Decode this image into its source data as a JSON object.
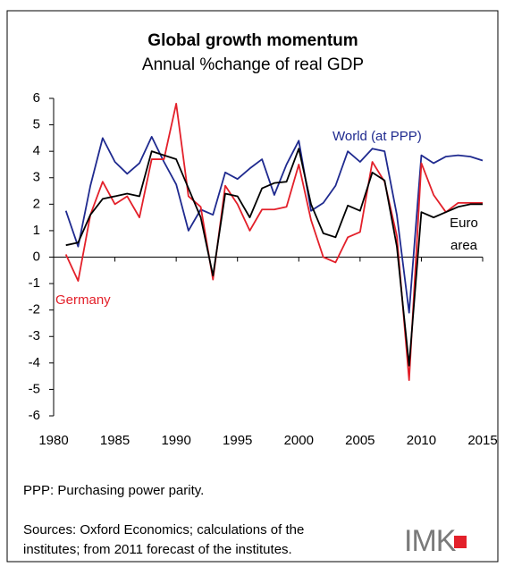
{
  "chart_data": {
    "type": "line",
    "title": "Global growth momentum",
    "subtitle": "Annual %change of real GDP",
    "x": [
      1981,
      1982,
      1983,
      1984,
      1985,
      1986,
      1987,
      1988,
      1989,
      1990,
      1991,
      1992,
      1993,
      1994,
      1995,
      1996,
      1997,
      1998,
      1999,
      2000,
      2001,
      2002,
      2003,
      2004,
      2005,
      2006,
      2007,
      2008,
      2009,
      2010,
      2011,
      2012,
      2013,
      2014,
      2015
    ],
    "series": [
      {
        "name": "World (at PPP)",
        "color": "#1f2a8f",
        "values": [
          1.75,
          0.4,
          2.7,
          4.5,
          3.6,
          3.15,
          3.55,
          4.55,
          3.6,
          2.75,
          1.0,
          1.8,
          1.6,
          3.2,
          2.95,
          3.35,
          3.7,
          2.35,
          3.5,
          4.4,
          1.75,
          2.05,
          2.7,
          4.0,
          3.6,
          4.1,
          4.0,
          1.6,
          -2.1,
          3.85,
          3.55,
          3.8,
          3.85,
          3.8,
          3.65
        ]
      },
      {
        "name": "Germany",
        "color": "#e3202a",
        "values": [
          0.1,
          -0.9,
          1.6,
          2.85,
          2.0,
          2.3,
          1.5,
          3.7,
          3.7,
          5.8,
          2.3,
          1.9,
          -0.85,
          2.7,
          2.0,
          1.0,
          1.8,
          1.8,
          1.9,
          3.5,
          1.4,
          0.0,
          -0.2,
          0.75,
          0.95,
          3.6,
          2.85,
          0.8,
          -4.65,
          3.55,
          2.35,
          1.7,
          2.05,
          2.05,
          2.05
        ]
      },
      {
        "name": "Euro area",
        "color": "#000000",
        "values": [
          0.45,
          0.55,
          1.6,
          2.2,
          2.3,
          2.4,
          2.3,
          4.0,
          3.85,
          3.7,
          2.6,
          1.5,
          -0.7,
          2.4,
          2.3,
          1.5,
          2.6,
          2.8,
          2.85,
          4.1,
          2.0,
          0.9,
          0.75,
          1.95,
          1.75,
          3.2,
          2.9,
          0.4,
          -4.1,
          1.7,
          1.5,
          1.7,
          1.9,
          2.0,
          2.0
        ]
      }
    ],
    "xlim": [
      1980,
      2015
    ],
    "xticks": [
      1980,
      1985,
      1990,
      1995,
      2000,
      2005,
      2010,
      2015
    ],
    "ylim": [
      -6,
      6
    ],
    "yticks": [
      -6,
      -5,
      -4,
      -3,
      -2,
      -1,
      0,
      1,
      2,
      3,
      4,
      5,
      6
    ],
    "note": "PPP: Purchasing power parity.",
    "source": "Sources: Oxford Economics; calculations of the institutes; from 2011 forecast of the institutes.",
    "logo": "IMK"
  }
}
